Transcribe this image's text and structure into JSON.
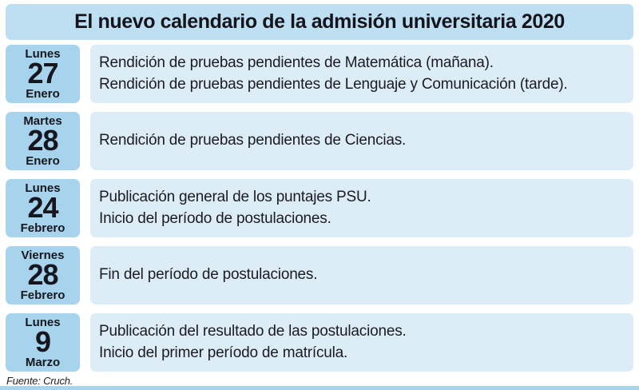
{
  "header": {
    "title": "El nuevo calendario de la admisión universitaria 2020"
  },
  "rows": [
    {
      "day_name": "Lunes",
      "day_number": "27",
      "month": "Enero",
      "lines": [
        "Rendición de pruebas pendientes de Matemática (mañana).",
        "Rendición de pruebas pendientes de Lenguaje y Comunicación (tarde)."
      ]
    },
    {
      "day_name": "Martes",
      "day_number": "28",
      "month": "Enero",
      "lines": [
        "Rendición de pruebas pendientes de Ciencias."
      ]
    },
    {
      "day_name": "Lunes",
      "day_number": "24",
      "month": "Febrero",
      "lines": [
        "Publicación general de los puntajes PSU.",
        "Inicio del período de postulaciones."
      ]
    },
    {
      "day_name": "Viernes",
      "day_number": "28",
      "month": "Febrero",
      "lines": [
        "Fin del período de postulaciones."
      ]
    },
    {
      "day_name": "Lunes",
      "day_number": "9",
      "month": "Marzo",
      "lines": [
        "Publicación del resultado de las postulaciones.",
        "Inicio del primer período de matrícula."
      ]
    }
  ],
  "footer": {
    "source": "Fuente: Cruch."
  },
  "colors": {
    "header_bg": "#bddff1",
    "date_block_bg": "#a7d4ec",
    "event_block_bg": "#ddedf7",
    "bottom_bar": "#a7d4ec",
    "text_dark": "#16161e"
  }
}
